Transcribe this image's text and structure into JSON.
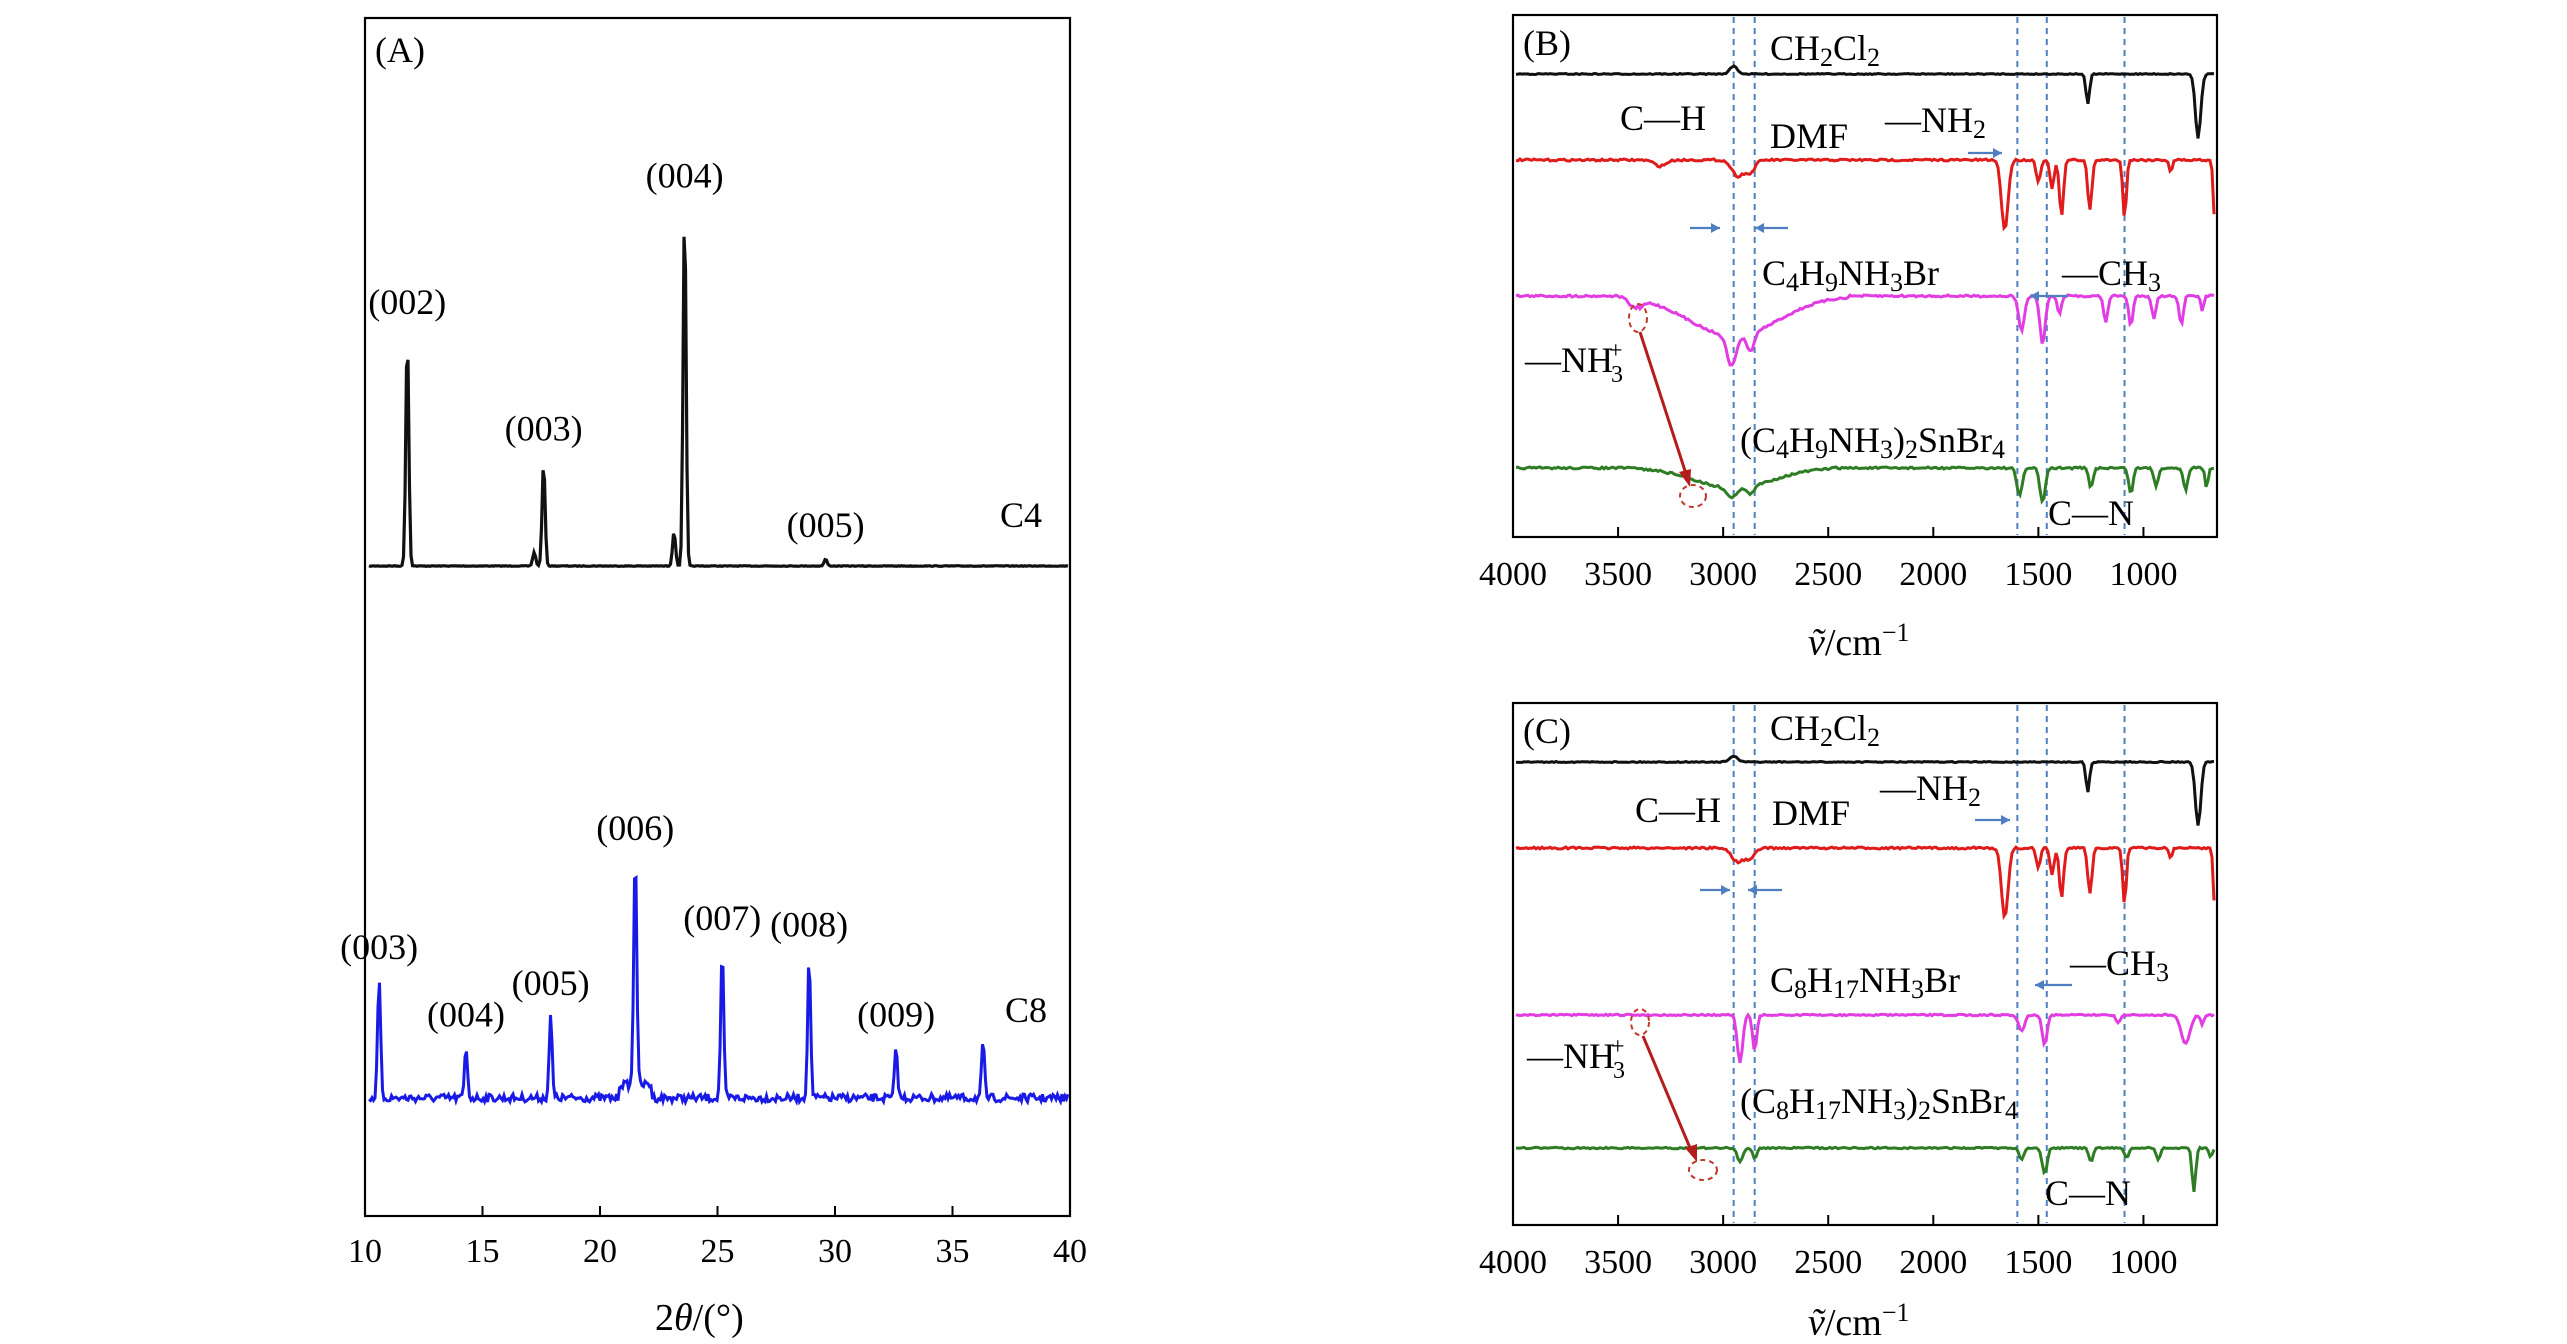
{
  "colors": {
    "black": "#111111",
    "red": "#e01b1b",
    "magenta": "#e23de2",
    "green": "#2e7d24",
    "blue": "#1a1ae6",
    "refline": "#4f7fc0",
    "arrow_red": "#b51d1d"
  },
  "chart_data": [
    {
      "panel": "(A)",
      "type": "line",
      "xlabel": "2θ/(°)",
      "xlim": [
        10,
        40
      ],
      "xticks": [
        "10",
        "15",
        "20",
        "25",
        "30",
        "35",
        "40"
      ],
      "series": [
        {
          "name": "C4",
          "color": "#111111",
          "peaks": [
            {
              "x": 11.8,
              "h": 1.0,
              "label": "(002)"
            },
            {
              "x": 17.6,
              "h": 0.45,
              "label": "(003)"
            },
            {
              "x": 17.2,
              "h": 0.06,
              "label": ""
            },
            {
              "x": 23.6,
              "h": 1.55,
              "label": "(004)"
            },
            {
              "x": 23.15,
              "h": 0.15,
              "label": ""
            },
            {
              "x": 29.6,
              "h": 0.03,
              "label": "(005)"
            }
          ]
        },
        {
          "name": "C8",
          "color": "#1a1ae6",
          "peaks": [
            {
              "x": 10.6,
              "h": 0.52,
              "label": "(003)"
            },
            {
              "x": 14.3,
              "h": 0.22,
              "label": "(004)"
            },
            {
              "x": 17.9,
              "h": 0.36,
              "label": "(005)"
            },
            {
              "x": 21.5,
              "h": 1.05,
              "label": "(006)"
            },
            {
              "x": 25.2,
              "h": 0.65,
              "label": "(007)"
            },
            {
              "x": 28.9,
              "h": 0.62,
              "label": "(008)"
            },
            {
              "x": 32.6,
              "h": 0.22,
              "label": "(009)"
            },
            {
              "x": 36.3,
              "h": 0.24,
              "label": ""
            }
          ]
        }
      ]
    },
    {
      "panel": "(B)",
      "type": "line",
      "xlabel": "ṽ/cm⁻¹",
      "xlim": [
        4000,
        650
      ],
      "xticks": [
        "4000",
        "3500",
        "3000",
        "2500",
        "2000",
        "1500",
        "1000"
      ],
      "reference_lines": [
        2950,
        2850,
        1600,
        1460,
        1090
      ],
      "series": [
        {
          "name": "CH₂Cl₂",
          "color": "#111111"
        },
        {
          "name": "DMF",
          "color": "#e01b1b"
        },
        {
          "name": "C₄H₉NH₃Br",
          "color": "#e23de2"
        },
        {
          "name": "(C₄H₉NH₃)₂SnBr₄",
          "color": "#2e7d24"
        }
      ],
      "annotations": [
        "C—H",
        "—NH₂",
        "—CH₃",
        "—NH₃⁺",
        "C—N"
      ]
    },
    {
      "panel": "(C)",
      "type": "line",
      "xlabel": "ṽ/cm⁻¹",
      "xlim": [
        4000,
        650
      ],
      "xticks": [
        "4000",
        "3500",
        "3000",
        "2500",
        "2000",
        "1500",
        "1000"
      ],
      "reference_lines": [
        2950,
        2850,
        1600,
        1460,
        1090
      ],
      "series": [
        {
          "name": "CH₂Cl₂",
          "color": "#111111"
        },
        {
          "name": "DMF",
          "color": "#e01b1b"
        },
        {
          "name": "C₈H₁₇NH₃Br",
          "color": "#e23de2"
        },
        {
          "name": "(C₈H₁₇NH₃)₂SnBr₄",
          "color": "#2e7d24"
        }
      ],
      "annotations": [
        "C—H",
        "—NH₂",
        "—CH₃",
        "—NH₃⁺",
        "C—N"
      ]
    }
  ],
  "labels": {
    "A": {
      "tag": "(A)",
      "xlabel_pre": "2",
      "xlabel_theta": "θ",
      "xlabel_post": "/(°)",
      "c4": "C4",
      "c8": "C8",
      "c4_peaks": [
        "(002)",
        "(003)",
        "(004)",
        "(005)"
      ],
      "c8_peaks": [
        "(003)",
        "(004)",
        "(005)",
        "(006)",
        "(007)",
        "(008)",
        "(009)"
      ]
    },
    "B": {
      "tag": "(B)",
      "ch2cl2_main": "CH",
      "ch2cl2_sub": "2",
      "ch2cl2_cl": "Cl",
      "dmf": "DMF",
      "ch": "C—H",
      "nh2_main": "—NH",
      "nh2_sub": "2",
      "ch3_main": "—CH",
      "ch3_sub": "3",
      "nh3_main": "—NH",
      "nh3_sub": "3",
      "nh3_sup": "+",
      "cn": "C—N",
      "salt_c": "C",
      "salt_4": "4",
      "salt_h": "H",
      "salt_9": "9",
      "salt_nh": "NH",
      "salt_3": "3",
      "salt_br": "Br",
      "pv_open": "(C",
      "pv_4": "4",
      "pv_h": "H",
      "pv_9": "9",
      "pv_nh": "NH",
      "pv_3": "3",
      "pv_close": ")",
      "pv_2": "2",
      "pv_snbr": "SnBr",
      "pv_4b": "4",
      "xl_v": "ṽ",
      "xl_unit": "/cm",
      "xl_sup": "−1"
    },
    "C": {
      "tag": "(C)",
      "ch2cl2_main": "CH",
      "ch2cl2_sub": "2",
      "ch2cl2_cl": "Cl",
      "dmf": "DMF",
      "ch": "C—H",
      "nh2_main": "—NH",
      "nh2_sub": "2",
      "ch3_main": "—CH",
      "ch3_sub": "3",
      "nh3_main": "—NH",
      "nh3_sub": "3",
      "nh3_sup": "+",
      "cn": "C—N",
      "salt_c": "C",
      "salt_8": "8",
      "salt_h": "H",
      "salt_17": "17",
      "salt_nh": "NH",
      "salt_3": "3",
      "salt_br": "Br",
      "pv_open": "(C",
      "pv_8": "8",
      "pv_h": "H",
      "pv_17": "17",
      "pv_nh": "NH",
      "pv_3": "3",
      "pv_close": ")",
      "pv_2": "2",
      "pv_snbr": "SnBr",
      "pv_4b": "4",
      "xl_v": "ṽ",
      "xl_unit": "/cm",
      "xl_sup": "−1"
    }
  }
}
